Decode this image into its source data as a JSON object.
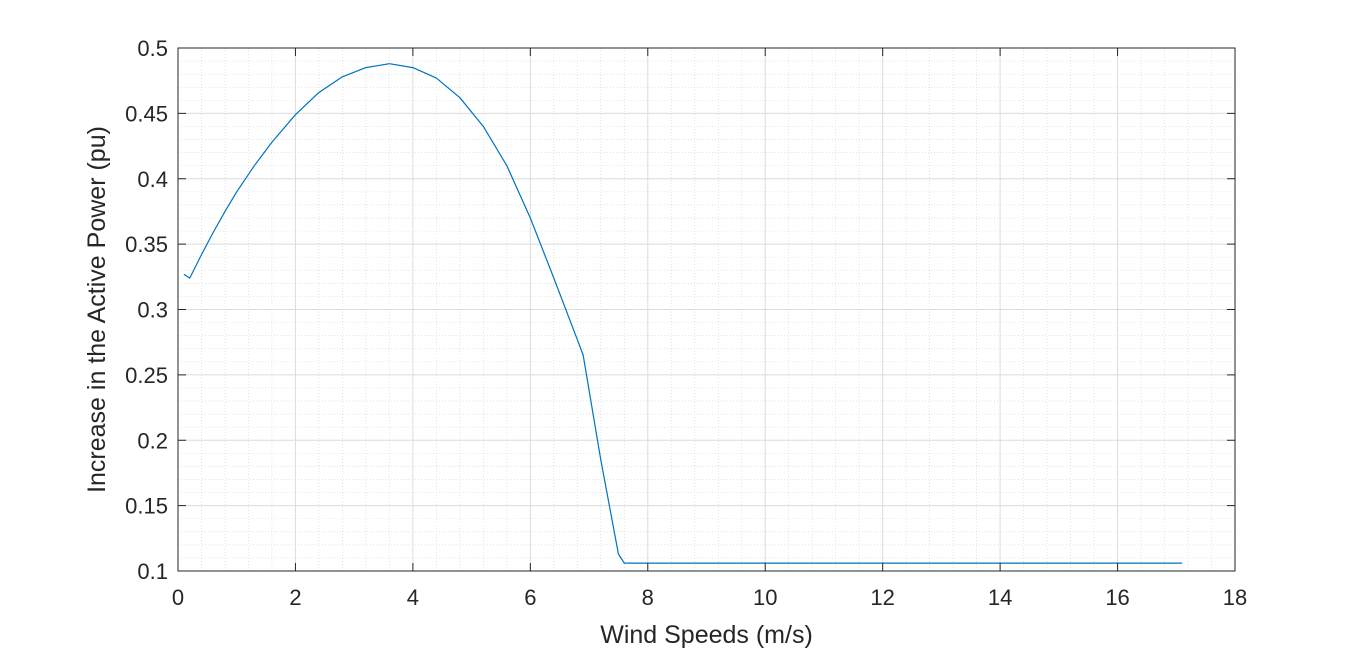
{
  "chart_data": {
    "type": "line",
    "title": "",
    "xlabel": "Wind Speeds (m/s)",
    "ylabel": "Increase in the Active Power (pu)",
    "xlim": [
      0,
      18
    ],
    "ylim": [
      0.1,
      0.5
    ],
    "xticks": [
      "0",
      "2",
      "4",
      "6",
      "8",
      "10",
      "12",
      "14",
      "16",
      "18"
    ],
    "yticks": [
      "0.1",
      "0.15",
      "0.2",
      "0.25",
      "0.3",
      "0.35",
      "0.4",
      "0.45",
      "0.5"
    ],
    "grid": true,
    "minor_grid": true,
    "series": [
      {
        "color": "#0072bd",
        "x": [
          0.1,
          0.2,
          0.4,
          0.6,
          0.8,
          1.0,
          1.3,
          1.6,
          2.0,
          2.4,
          2.8,
          3.2,
          3.6,
          4.0,
          4.4,
          4.8,
          5.2,
          5.6,
          6.0,
          6.4,
          6.8,
          6.9,
          7.2,
          7.5,
          7.6,
          8.0,
          10.0,
          12.0,
          14.0,
          16.0,
          17.1
        ],
        "y": [
          0.327,
          0.324,
          0.342,
          0.359,
          0.375,
          0.39,
          0.41,
          0.428,
          0.449,
          0.466,
          0.478,
          0.485,
          0.488,
          0.485,
          0.477,
          0.462,
          0.44,
          0.41,
          0.37,
          0.324,
          0.277,
          0.265,
          0.185,
          0.113,
          0.106,
          0.106,
          0.106,
          0.106,
          0.106,
          0.106,
          0.106
        ]
      }
    ]
  }
}
